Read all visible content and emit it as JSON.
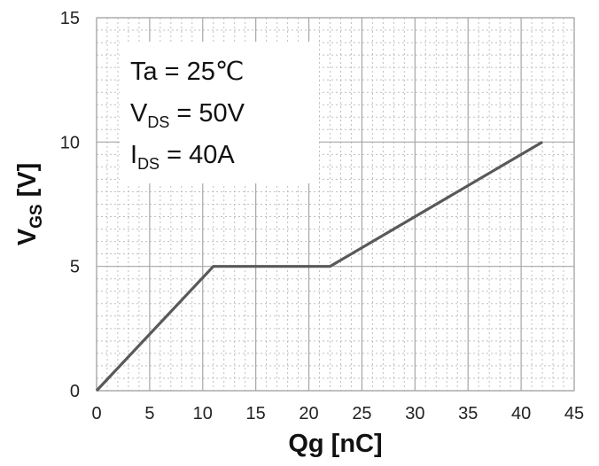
{
  "chart_data": {
    "type": "line",
    "xlabel": "Qg [nC]",
    "ylabel": {
      "main": "V",
      "sub": "GS",
      "unit": " [V]"
    },
    "xlim": [
      0,
      45
    ],
    "ylim": [
      0,
      15
    ],
    "xticks": [
      "0",
      "5",
      "10",
      "15",
      "20",
      "25",
      "30",
      "35",
      "40",
      "45"
    ],
    "yticks": [
      "0",
      "5",
      "10",
      "15"
    ],
    "grid": true,
    "annotations": [
      {
        "main": "Ta = 25℃",
        "sub": "",
        "rest": ""
      },
      {
        "main": "V",
        "sub": "DS",
        "rest": " = 50V"
      },
      {
        "main": "I",
        "sub": "DS",
        "rest": " = 40A"
      }
    ],
    "series": [
      {
        "x": [
          0,
          11,
          22,
          42
        ],
        "y": [
          0,
          5,
          5,
          10
        ]
      }
    ],
    "colors": {
      "line": "#595959",
      "major_grid": "#a6a6a6",
      "minor_grid": "#bfbfbf"
    }
  }
}
